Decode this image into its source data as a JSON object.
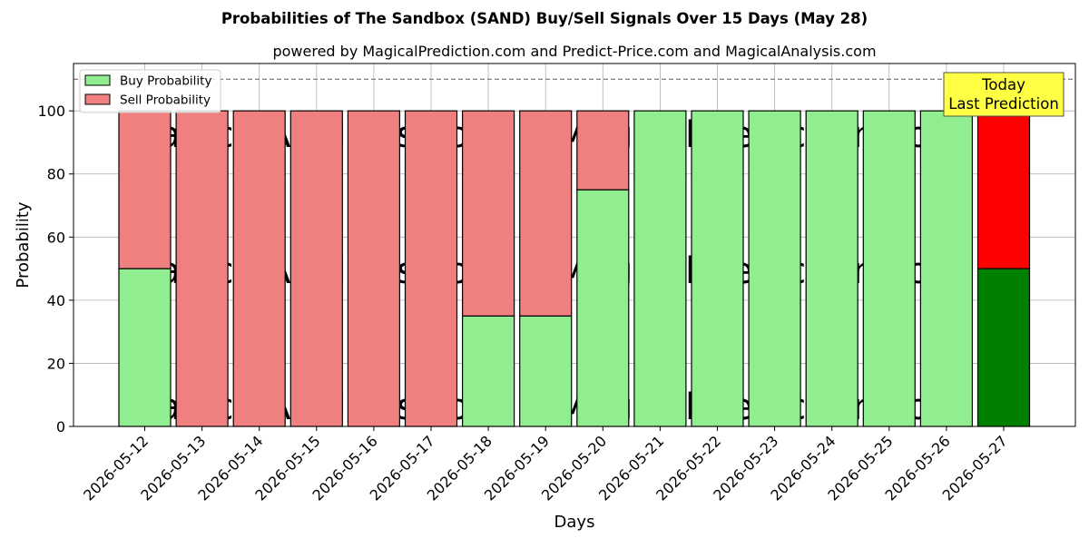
{
  "chart_data": {
    "type": "bar",
    "stacked": true,
    "title": "Probabilities of The Sandbox (SAND) Buy/Sell Signals Over 15 Days (May 28)",
    "subtitle": "powered by MagicalPrediction.com and Predict-Price.com and MagicalAnalysis.com",
    "xlabel": "Days",
    "ylabel": "Probability",
    "ylim": [
      0,
      115
    ],
    "yticks": [
      0,
      20,
      40,
      60,
      80,
      100
    ],
    "grid": true,
    "legend_position": "top-left",
    "categories": [
      "2026-05-12",
      "2026-05-13",
      "2026-05-14",
      "2026-05-15",
      "2026-05-16",
      "2026-05-17",
      "2026-05-18",
      "2026-05-19",
      "2026-05-20",
      "2026-05-21",
      "2026-05-22",
      "2026-05-23",
      "2026-05-24",
      "2026-05-25",
      "2026-05-26",
      "2026-05-27"
    ],
    "series": [
      {
        "name": "Buy Probability",
        "color": "#90ee90",
        "values": [
          50,
          0,
          0,
          0,
          0,
          0,
          35,
          35,
          75,
          100,
          100,
          100,
          100,
          100,
          100,
          50
        ]
      },
      {
        "name": "Sell Probability",
        "color": "#f08080",
        "values": [
          50,
          100,
          100,
          100,
          100,
          100,
          65,
          65,
          25,
          0,
          0,
          0,
          0,
          0,
          0,
          50
        ]
      }
    ],
    "highlight": {
      "index": 15,
      "buy_color": "#008000",
      "sell_color": "#ff0000"
    },
    "reference_line": {
      "y": 110,
      "style": "dashed"
    },
    "annotation": {
      "lines": [
        "Today",
        "Last Prediction"
      ],
      "background": "#ffff44"
    },
    "watermarks": [
      "MagicalAnalysis.com",
      "MagicalPrediction.com"
    ]
  }
}
